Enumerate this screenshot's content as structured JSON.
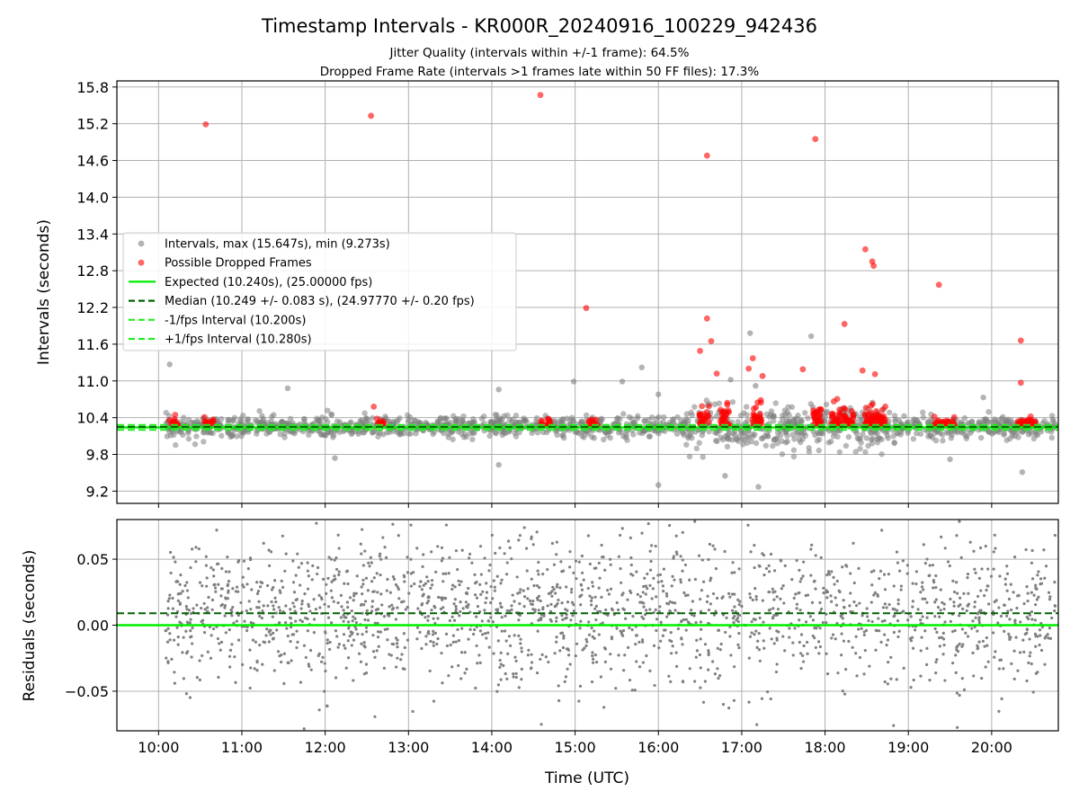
{
  "figure": {
    "title": "Timestamp Intervals - KR000R_20240916_100229_942436",
    "subtitle_1": "Jitter Quality (intervals within +/-1 frame): 64.5%",
    "subtitle_2": "Dropped Frame Rate (intervals >1 frames late within 50 FF files): 17.3%"
  },
  "colors": {
    "intervals": "#808080",
    "dropped": "#ff0000",
    "expected": "#00ee00",
    "median": "#006400",
    "fps_band": "#22ee22",
    "grid": "#b0b0b0"
  },
  "chart_data": [
    {
      "type": "scatter",
      "ylabel": "Intervals (seconds)",
      "xlim": [
        "09:30",
        "20:48"
      ],
      "ylim": [
        9.0,
        15.9
      ],
      "yticks": [
        "9.2",
        "9.8",
        "10.4",
        "11.0",
        "11.6",
        "12.2",
        "12.8",
        "13.4",
        "14.0",
        "14.6",
        "15.2",
        "15.8"
      ],
      "grid": true,
      "legend_position": "center-left",
      "legend": [
        "Intervals, max (15.647s), min (9.273s)",
        "Possible Dropped Frames",
        "Expected (10.240s), (25.00000 fps)",
        "Median (10.249 +/- 0.083 s), (24.97770 +/- 0.20 fps)",
        "-1/fps Interval (10.200s)",
        "+1/fps Interval (10.280s)"
      ],
      "lines": {
        "expected": 10.24,
        "median": 10.249,
        "minus_fps": 10.2,
        "plus_fps": 10.28
      },
      "interval_range": {
        "min": 9.273,
        "max": 15.647
      },
      "outliers_intervals": [
        [
          "10:08",
          11.27
        ],
        [
          "11:33",
          10.88
        ],
        [
          "12:07",
          9.74
        ],
        [
          "14:05",
          9.63
        ],
        [
          "14:05",
          10.86
        ],
        [
          "14:59",
          10.99
        ],
        [
          "15:34",
          10.99
        ],
        [
          "15:48",
          11.22
        ],
        [
          "16:00",
          10.78
        ],
        [
          "16:00",
          9.3
        ],
        [
          "16:48",
          9.45
        ],
        [
          "16:52",
          11.02
        ],
        [
          "17:06",
          11.78
        ],
        [
          "17:10",
          10.92
        ],
        [
          "17:12",
          9.27
        ],
        [
          "17:50",
          11.73
        ],
        [
          "19:30",
          9.72
        ],
        [
          "19:54",
          10.73
        ],
        [
          "20:22",
          9.51
        ]
      ],
      "dropped_frames": [
        [
          "10:34",
          15.19
        ],
        [
          "12:33",
          15.33
        ],
        [
          "14:35",
          15.67
        ],
        [
          "15:08",
          12.19
        ],
        [
          "16:35",
          14.68
        ],
        [
          "16:35",
          12.02
        ],
        [
          "16:38",
          11.65
        ],
        [
          "16:30",
          11.49
        ],
        [
          "16:42",
          11.12
        ],
        [
          "17:08",
          11.37
        ],
        [
          "17:05",
          11.2
        ],
        [
          "17:15",
          11.08
        ],
        [
          "17:44",
          11.19
        ],
        [
          "17:53",
          14.95
        ],
        [
          "18:14",
          11.93
        ],
        [
          "18:29",
          13.15
        ],
        [
          "18:34",
          12.95
        ],
        [
          "18:35",
          12.88
        ],
        [
          "18:36",
          11.11
        ],
        [
          "18:27",
          11.17
        ],
        [
          "19:22",
          12.57
        ],
        [
          "20:21",
          11.66
        ],
        [
          "20:21",
          10.97
        ],
        [
          "12:35",
          10.58
        ]
      ],
      "dropped_clusters": [
        "10:11",
        "10:36",
        "12:39",
        "14:39",
        "15:13",
        "16:33",
        "16:48",
        "17:11",
        "17:55",
        "18:08",
        "18:17",
        "18:32",
        "18:40",
        "19:22",
        "19:30",
        "20:22",
        "20:28"
      ]
    },
    {
      "type": "scatter",
      "ylabel": "Residuals (seconds)",
      "xlabel": "Time (UTC)",
      "xlim": [
        "09:30",
        "20:48"
      ],
      "ylim": [
        -0.08,
        0.08
      ],
      "yticks": [
        "−0.05",
        "0.00",
        "0.05"
      ],
      "xticks": [
        "10:00",
        "11:00",
        "12:00",
        "13:00",
        "14:00",
        "15:00",
        "16:00",
        "17:00",
        "18:00",
        "19:00",
        "20:00"
      ],
      "grid": true,
      "lines": {
        "expected": 0.0,
        "median": 0.009
      }
    }
  ]
}
